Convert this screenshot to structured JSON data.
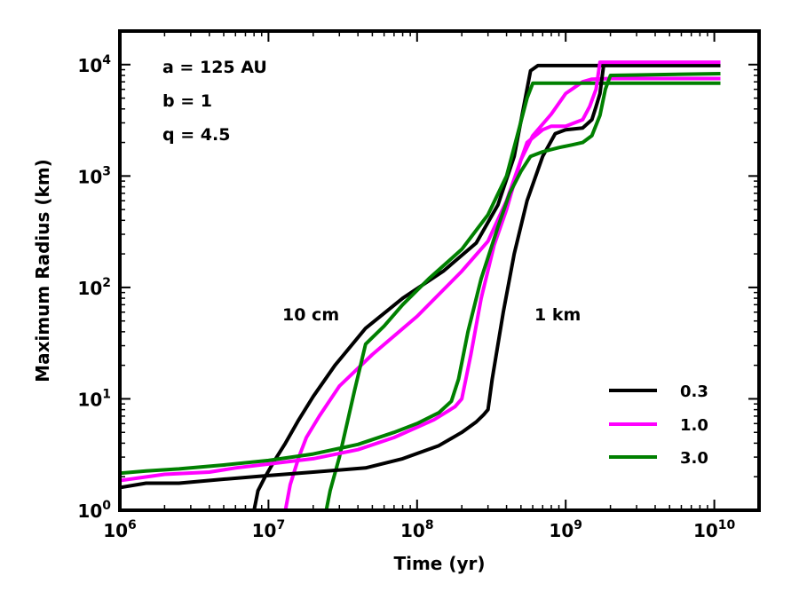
{
  "chart_data": {
    "type": "line",
    "title": "",
    "xlabel": "Time (yr)",
    "ylabel": "Maximum Radius (km)",
    "xscale": "log",
    "yscale": "log",
    "xlim": [
      1000000,
      20000000000
    ],
    "ylim": [
      1,
      20000
    ],
    "x_ticks": [
      {
        "base": "10",
        "exp": "6",
        "value": 1000000
      },
      {
        "base": "10",
        "exp": "7",
        "value": 10000000
      },
      {
        "base": "10",
        "exp": "8",
        "value": 100000000
      },
      {
        "base": "10",
        "exp": "9",
        "value": 1000000000
      },
      {
        "base": "10",
        "exp": "10",
        "value": 10000000000
      }
    ],
    "y_ticks": [
      {
        "base": "10",
        "exp": "0",
        "value": 1
      },
      {
        "base": "10",
        "exp": "1",
        "value": 10
      },
      {
        "base": "10",
        "exp": "2",
        "value": 100
      },
      {
        "base": "10",
        "exp": "3",
        "value": 1000
      },
      {
        "base": "10",
        "exp": "4",
        "value": 10000
      }
    ],
    "params": [
      "a = 125 AU",
      "b = 1",
      "q = 4.5"
    ],
    "annotations": [
      "10 cm",
      "1 km"
    ],
    "legend": {
      "placement": "lower-right",
      "entries": [
        {
          "label": "0.3",
          "color": "#000000"
        },
        {
          "label": "1.0",
          "color": "#ff00ff"
        },
        {
          "label": "3.0",
          "color": "#008000"
        }
      ]
    },
    "series": [
      {
        "name": "0.3",
        "group": "10 cm",
        "color": "#000000",
        "points": [
          [
            8000000,
            1
          ],
          [
            8500000,
            1.5
          ],
          [
            9500000,
            2.0
          ],
          [
            11000000,
            2.8
          ],
          [
            13000000,
            4
          ],
          [
            16000000,
            6.5
          ],
          [
            20000000,
            10.5
          ],
          [
            28000000,
            20
          ],
          [
            45000000,
            43
          ],
          [
            80000000,
            80
          ],
          [
            150000000,
            140
          ],
          [
            250000000,
            250
          ],
          [
            350000000,
            550
          ],
          [
            450000000,
            1500
          ],
          [
            580000000,
            8800
          ],
          [
            650000000,
            9800
          ],
          [
            800000000,
            9800
          ],
          [
            1000000000,
            9800
          ],
          [
            11000000000,
            9800
          ]
        ]
      },
      {
        "name": "1.0",
        "group": "10 cm",
        "color": "#ff00ff",
        "points": [
          [
            13000000,
            1
          ],
          [
            14000000,
            1.7
          ],
          [
            16000000,
            3
          ],
          [
            18000000,
            4.5
          ],
          [
            22000000,
            7
          ],
          [
            30000000,
            13
          ],
          [
            50000000,
            25
          ],
          [
            100000000,
            55
          ],
          [
            200000000,
            140
          ],
          [
            300000000,
            260
          ],
          [
            400000000,
            600
          ],
          [
            500000000,
            1400
          ],
          [
            600000000,
            2300
          ],
          [
            800000000,
            3600
          ],
          [
            1000000000,
            5500
          ],
          [
            1300000000,
            7000
          ],
          [
            1500000000,
            7400
          ],
          [
            2000000000,
            7500
          ],
          [
            11000000000,
            7500
          ]
        ]
      },
      {
        "name": "3.0",
        "group": "10 cm",
        "color": "#008000",
        "points": [
          [
            24500000,
            1
          ],
          [
            26000000,
            1.5
          ],
          [
            30000000,
            3
          ],
          [
            38000000,
            12
          ],
          [
            45000000,
            31
          ],
          [
            60000000,
            45
          ],
          [
            80000000,
            70
          ],
          [
            120000000,
            120
          ],
          [
            200000000,
            220
          ],
          [
            300000000,
            450
          ],
          [
            400000000,
            1000
          ],
          [
            480000000,
            2500
          ],
          [
            550000000,
            5000
          ],
          [
            600000000,
            6800
          ],
          [
            1000000000,
            6800
          ],
          [
            11000000000,
            6800
          ]
        ]
      },
      {
        "name": "0.3",
        "group": "1 km",
        "color": "#000000",
        "points": [
          [
            1000000,
            1.6
          ],
          [
            1500000,
            1.75
          ],
          [
            2500000,
            1.75
          ],
          [
            5000000,
            1.9
          ],
          [
            10000000,
            2.05
          ],
          [
            20000000,
            2.2
          ],
          [
            45000000,
            2.4
          ],
          [
            80000000,
            2.9
          ],
          [
            140000000,
            3.8
          ],
          [
            200000000,
            5.0
          ],
          [
            250000000,
            6.2
          ],
          [
            280000000,
            7.2
          ],
          [
            300000000,
            8.0
          ],
          [
            320000000,
            15
          ],
          [
            380000000,
            60
          ],
          [
            450000000,
            200
          ],
          [
            550000000,
            600
          ],
          [
            700000000,
            1500
          ],
          [
            850000000,
            2400
          ],
          [
            1000000000,
            2600
          ],
          [
            1300000000,
            2700
          ],
          [
            1500000000,
            3200
          ],
          [
            1600000000,
            4200
          ],
          [
            1700000000,
            5500
          ],
          [
            1800000000,
            9800
          ],
          [
            2000000000,
            10000
          ],
          [
            11000000000,
            10000
          ]
        ]
      },
      {
        "name": "1.0",
        "group": "1 km",
        "color": "#ff00ff",
        "points": [
          [
            1000000,
            1.85
          ],
          [
            2000000,
            2.1
          ],
          [
            4000000,
            2.2
          ],
          [
            6000000,
            2.4
          ],
          [
            10000000,
            2.6
          ],
          [
            20000000,
            2.9
          ],
          [
            40000000,
            3.5
          ],
          [
            70000000,
            4.5
          ],
          [
            130000000,
            6.5
          ],
          [
            180000000,
            8.5
          ],
          [
            200000000,
            10
          ],
          [
            230000000,
            25
          ],
          [
            270000000,
            80
          ],
          [
            330000000,
            240
          ],
          [
            400000000,
            500
          ],
          [
            500000000,
            1400
          ],
          [
            550000000,
            2000
          ],
          [
            700000000,
            2600
          ],
          [
            800000000,
            2800
          ],
          [
            1000000000,
            2800
          ],
          [
            1300000000,
            3200
          ],
          [
            1450000000,
            4200
          ],
          [
            1600000000,
            6000
          ],
          [
            1700000000,
            10500
          ],
          [
            11000000000,
            10500
          ]
        ]
      },
      {
        "name": "3.0",
        "group": "1 km",
        "color": "#008000",
        "points": [
          [
            1000000,
            2.15
          ],
          [
            1500000,
            2.25
          ],
          [
            2500000,
            2.35
          ],
          [
            5000000,
            2.55
          ],
          [
            10000000,
            2.8
          ],
          [
            20000000,
            3.2
          ],
          [
            40000000,
            3.9
          ],
          [
            70000000,
            5.0
          ],
          [
            100000000,
            6.0
          ],
          [
            140000000,
            7.5
          ],
          [
            170000000,
            9.5
          ],
          [
            190000000,
            15
          ],
          [
            220000000,
            40
          ],
          [
            270000000,
            120
          ],
          [
            350000000,
            350
          ],
          [
            420000000,
            700
          ],
          [
            500000000,
            1100
          ],
          [
            580000000,
            1500
          ],
          [
            700000000,
            1650
          ],
          [
            900000000,
            1800
          ],
          [
            1100000000,
            1900
          ],
          [
            1300000000,
            2000
          ],
          [
            1500000000,
            2300
          ],
          [
            1700000000,
            3500
          ],
          [
            1850000000,
            6000
          ],
          [
            2000000000,
            8000
          ],
          [
            11000000000,
            8300
          ]
        ]
      }
    ]
  }
}
